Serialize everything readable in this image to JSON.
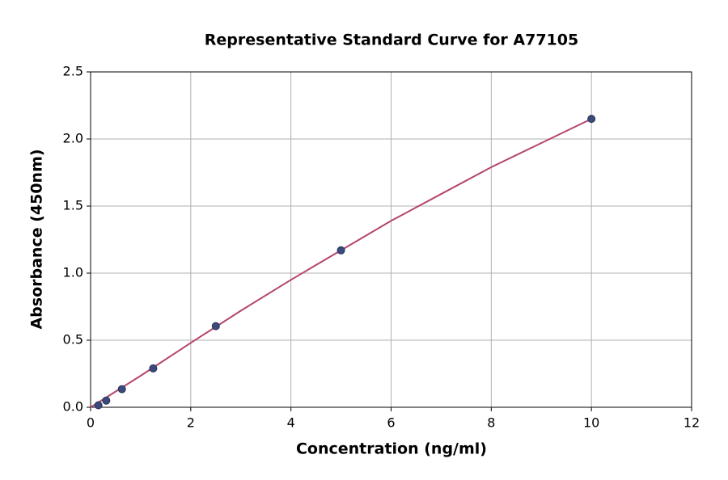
{
  "chart_data": {
    "type": "scatter",
    "title": "Representative Standard Curve for A77105",
    "x_label": "Concentration (ng/ml)",
    "y_label": "Absorbance (450nm)",
    "x": [
      0.156,
      0.3125,
      0.625,
      1.25,
      2.5,
      5,
      10
    ],
    "values": [
      0.015,
      0.05,
      0.135,
      0.29,
      0.605,
      1.17,
      2.15
    ],
    "color": "#3b4a7a",
    "curve": {
      "x": [
        0,
        1,
        2,
        3,
        4,
        5,
        6,
        7,
        8,
        9,
        10
      ],
      "values": [
        0.0,
        0.235,
        0.48,
        0.72,
        0.95,
        1.17,
        1.39,
        1.59,
        1.79,
        1.97,
        2.15
      ],
      "color": "#b5456b"
    },
    "xlim": [
      0,
      12
    ],
    "xticks": [
      0,
      2,
      4,
      6,
      8,
      10,
      12
    ],
    "ylim": [
      0,
      2.5
    ],
    "yticks": [
      {
        "value": 0,
        "label": "0.0"
      },
      0.5,
      {
        "value": 1,
        "label": "1.0"
      },
      1.5,
      {
        "value": 2,
        "label": "2.0"
      },
      2.5
    ],
    "grid": true
  }
}
